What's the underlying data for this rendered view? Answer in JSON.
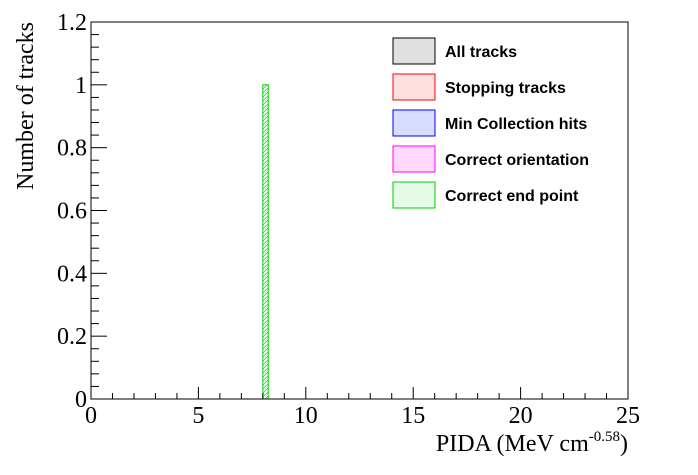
{
  "chart_data": {
    "type": "bar",
    "title": "",
    "xlabel": "PIDA (MeV cm",
    "xlabel_sup": "-0.58",
    "xlabel_close": ")",
    "ylabel": "Number of tracks",
    "xlim": [
      0,
      25
    ],
    "ylim": [
      0,
      1.2
    ],
    "x_ticks": [
      "0",
      "5",
      "10",
      "15",
      "20",
      "25"
    ],
    "y_ticks": [
      "0",
      "0.2",
      "0.4",
      "0.6",
      "0.8",
      "1",
      "1.2"
    ],
    "legend_position": "top-right",
    "grid": false,
    "series": [
      {
        "name": "All tracks",
        "color": "#000000",
        "fill": "#e0e0e0",
        "bins": []
      },
      {
        "name": "Stopping tracks",
        "color": "#ff0000",
        "fill": "#ffe0e0",
        "bins": []
      },
      {
        "name": "Min Collection hits",
        "color": "#0000ff",
        "fill": "#d8dcff",
        "bins": []
      },
      {
        "name": "Correct orientation",
        "color": "#ff00ff",
        "fill": "#ffd8ff",
        "bins": []
      },
      {
        "name": "Correct end point",
        "color": "#00cc00",
        "fill": "#e6fbe6",
        "bins": [
          {
            "x0": 8.0,
            "x1": 8.25,
            "value": 1
          }
        ]
      }
    ]
  }
}
